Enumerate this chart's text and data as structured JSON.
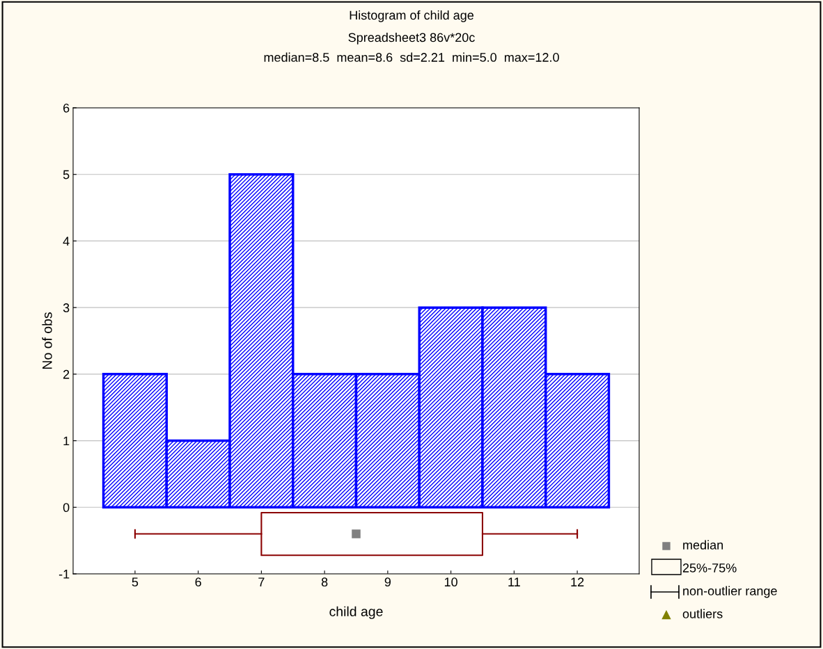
{
  "chart_data": [
    {
      "type": "histogram",
      "title": "Histogram of child age",
      "subtitle": "Spreadsheet3 86v*20c\nmedian=8.5  mean=8.6  sd=2.21  min=5.0  max=12.0",
      "xlabel": "child age",
      "ylabel": "No of obs",
      "bins": [
        4.5,
        5.5,
        6.5,
        7.5,
        8.5,
        9.5,
        10.5,
        11.5,
        12.5
      ],
      "series": [
        {
          "color": "#0000ff",
          "values": [
            2,
            1,
            5,
            2,
            2,
            3,
            3,
            2
          ]
        }
      ],
      "xlim": [
        4.02,
        12.98
      ],
      "xticks": [
        5,
        6,
        7,
        8,
        9,
        10,
        11,
        12
      ],
      "ylim": [
        -1,
        6
      ],
      "yticks": [
        -1,
        0,
        1,
        2,
        3,
        4,
        5,
        6
      ],
      "grid": "y"
    },
    {
      "type": "box",
      "orientation": "horizontal",
      "categories": [
        null
      ],
      "series": [
        {
          "color": "#8b0000",
          "boxes": [
            {
              "low": 5,
              "q1": 7,
              "median": 8.5,
              "q3": 10.5,
              "high": 12
            }
          ]
        }
      ],
      "annotations": [
        "median",
        "25%-75%",
        "non-outlier range",
        "outliers"
      ],
      "xlim": [
        4.02,
        12.98
      ]
    }
  ]
}
